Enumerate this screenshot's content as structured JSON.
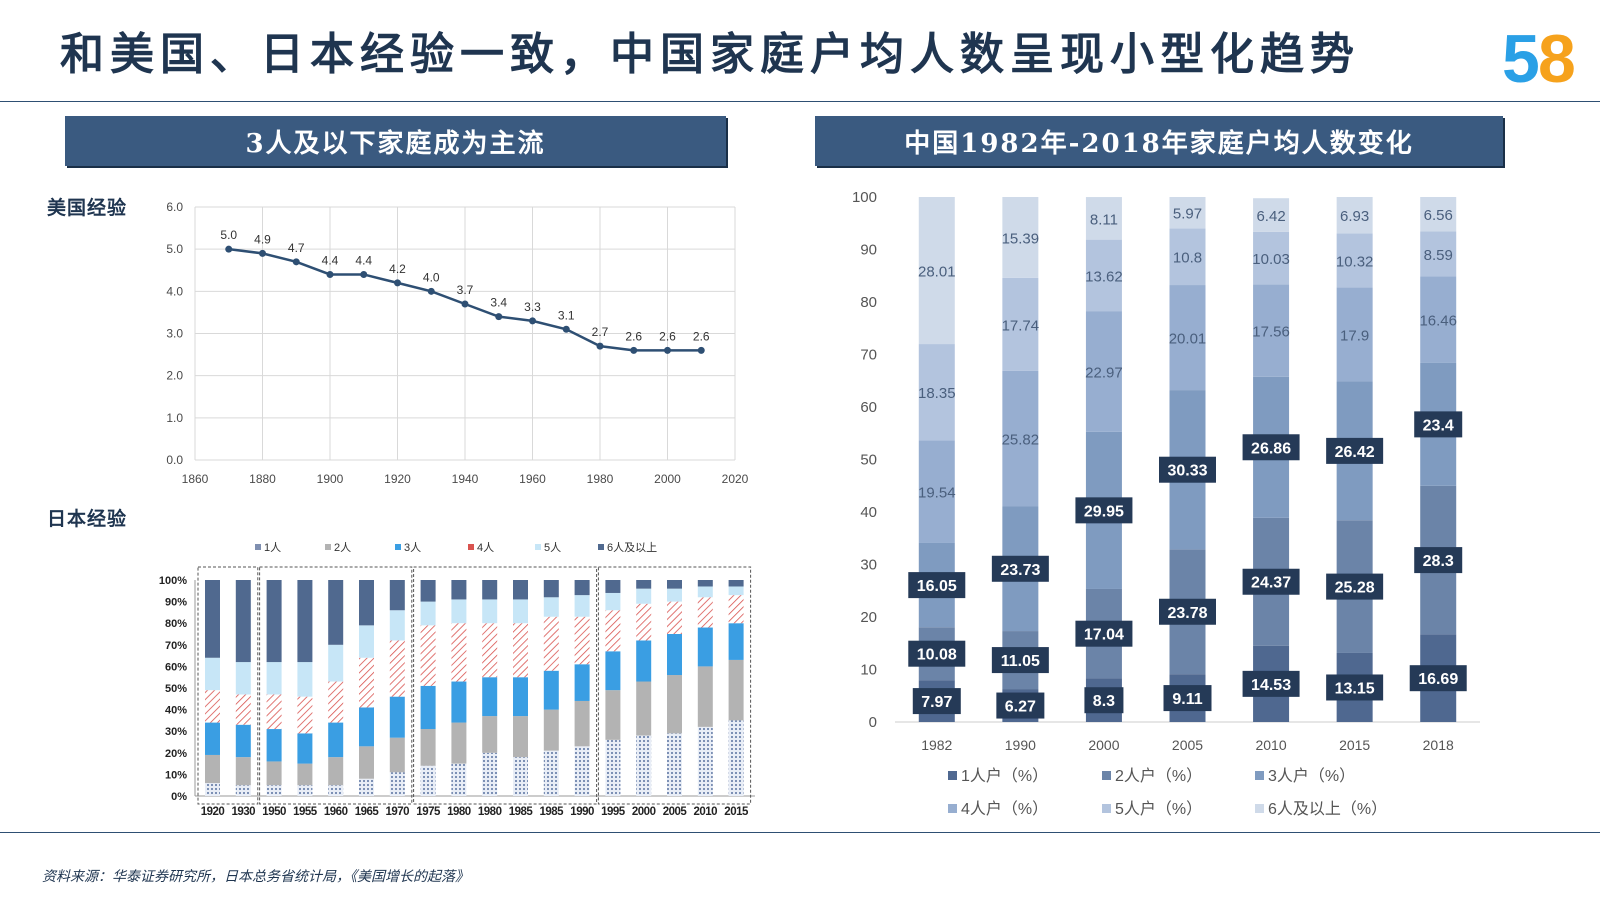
{
  "title": "和美国、日本经验一致，中国家庭户均人数呈现小型化趋势",
  "logo": {
    "text": "58",
    "colors": [
      "#2aa0e6",
      "#f6a21c",
      "#f07d2e"
    ]
  },
  "left_band": "3人及以下家庭成为主流",
  "right_band": "中国1982年-2018年家庭户均人数变化",
  "us_label": "美国经验",
  "jp_label": "日本经验",
  "source": "资料来源：华泰证券研究所，日本总务省统计局，《美国增长的起落》",
  "chart_data": [
    {
      "id": "us",
      "type": "line",
      "title": "美国经验",
      "x": [
        1870,
        1880,
        1890,
        1900,
        1910,
        1920,
        1930,
        1940,
        1950,
        1960,
        1970,
        1980,
        1990,
        2000,
        2010
      ],
      "values": [
        5.0,
        4.9,
        4.7,
        4.4,
        4.4,
        4.2,
        4.0,
        3.7,
        3.4,
        3.3,
        3.1,
        2.7,
        2.6,
        2.6,
        2.6
      ],
      "labels": [
        "5.0",
        "4.9",
        "4.7",
        "4.4",
        "4.4",
        "4.2",
        "4.0",
        "3.7",
        "3.4",
        "3.3",
        "3.1",
        "2.7",
        "2.6",
        "2.6",
        "2.6"
      ],
      "xlim": [
        1860,
        2020
      ],
      "ylim": [
        0,
        6
      ],
      "xticks": [
        "1860",
        "1880",
        "1900",
        "1920",
        "1940",
        "1960",
        "1980",
        "2000",
        "2020"
      ],
      "yticks": [
        "0.0",
        "1.0",
        "2.0",
        "3.0",
        "4.0",
        "5.0",
        "6.0"
      ],
      "color": "#2e4f73"
    },
    {
      "id": "jp",
      "type": "bar",
      "stacked": true,
      "title": "日本经验",
      "categories": [
        "1920",
        "1930",
        "1950",
        "1955",
        "1960",
        "1965",
        "1970",
        "1975",
        "1980",
        "1980",
        "1985",
        "1985",
        "1990",
        "1995",
        "2000",
        "2005",
        "2010",
        "2015"
      ],
      "legend": [
        "1人",
        "2人",
        "3人",
        "4人",
        "5人",
        "6人及以上"
      ],
      "series": [
        {
          "name": "1人",
          "values": [
            6,
            5,
            5,
            5,
            5,
            8,
            11,
            14,
            15,
            20,
            18,
            21,
            23,
            26,
            28,
            29,
            32,
            35
          ]
        },
        {
          "name": "2人",
          "values": [
            13,
            13,
            11,
            10,
            13,
            15,
            16,
            17,
            19,
            17,
            19,
            19,
            21,
            23,
            25,
            27,
            28,
            28
          ]
        },
        {
          "name": "3人",
          "values": [
            15,
            15,
            15,
            14,
            16,
            18,
            19,
            20,
            19,
            18,
            18,
            18,
            17,
            18,
            19,
            19,
            18,
            17
          ]
        },
        {
          "name": "4人",
          "values": [
            15,
            14,
            16,
            17,
            19,
            23,
            26,
            28,
            27,
            25,
            25,
            25,
            22,
            19,
            17,
            15,
            14,
            13
          ]
        },
        {
          "name": "5人",
          "values": [
            15,
            15,
            15,
            16,
            17,
            15,
            14,
            11,
            11,
            11,
            11,
            9,
            10,
            8,
            7,
            6,
            5,
            4
          ]
        },
        {
          "name": "6人及以上",
          "values": [
            36,
            38,
            38,
            38,
            30,
            21,
            14,
            10,
            9,
            9,
            9,
            8,
            7,
            6,
            4,
            4,
            3,
            3
          ]
        }
      ],
      "yticks": [
        "0%",
        "10%",
        "20%",
        "30%",
        "40%",
        "50%",
        "60%",
        "70%",
        "80%",
        "90%",
        "100%"
      ],
      "groups": [
        [
          0,
          1
        ],
        [
          2,
          6
        ],
        [
          7,
          12
        ],
        [
          13,
          17
        ]
      ]
    },
    {
      "id": "cn",
      "type": "bar",
      "stacked": true,
      "title": "中国1982年-2018年家庭户均人数变化",
      "categories": [
        "1982",
        "1990",
        "2000",
        "2005",
        "2010",
        "2015",
        "2018"
      ],
      "ylim": [
        0,
        100
      ],
      "yticks": [
        "0",
        "10",
        "20",
        "30",
        "40",
        "50",
        "60",
        "70",
        "80",
        "90",
        "100"
      ],
      "series": [
        {
          "name": "1人户（%）",
          "values": [
            7.97,
            6.27,
            8.3,
            9.11,
            14.53,
            13.15,
            16.69
          ],
          "labels": [
            "7.97",
            "6.27",
            "8.3",
            "9.11",
            "14.53",
            "13.15",
            "16.69"
          ],
          "color": "#4f6890"
        },
        {
          "name": "2人户（%）",
          "values": [
            10.08,
            11.05,
            17.04,
            23.78,
            24.37,
            25.28,
            28.3
          ],
          "labels": [
            "10.08",
            "11.05",
            "17.04",
            "23.78",
            "24.37",
            "25.28",
            "28.3"
          ],
          "color": "#6b84a8"
        },
        {
          "name": "3人户（%）",
          "values": [
            16.05,
            23.73,
            29.95,
            30.33,
            26.86,
            26.42,
            23.4
          ],
          "labels": [
            "16.05",
            "23.73",
            "29.95",
            "30.33",
            "26.86",
            "26.42",
            "23.4"
          ],
          "color": "#7f9bc0"
        },
        {
          "name": "4人户（%）",
          "values": [
            19.54,
            25.82,
            22.97,
            20.01,
            17.56,
            17.9,
            16.46
          ],
          "labels": [
            "19.54",
            "25.82",
            "22.97",
            "20.01",
            "17.56",
            "17.9",
            "16.46"
          ],
          "color": "#97aed0"
        },
        {
          "name": "5人户（%）",
          "values": [
            18.35,
            17.74,
            13.62,
            10.8,
            10.03,
            10.32,
            8.59
          ],
          "labels": [
            "18.35",
            "17.74",
            "13.62",
            "10.8",
            "10.03",
            "10.32",
            "8.59"
          ],
          "color": "#b3c4de"
        },
        {
          "name": "6人及以上（%）",
          "values": [
            28.01,
            15.39,
            8.11,
            5.97,
            6.42,
            6.93,
            6.56
          ],
          "labels": [
            "28.01",
            "15.39",
            "8.11",
            "5.97",
            "6.42",
            "6.93",
            "6.56"
          ],
          "color": "#cfdae9"
        }
      ]
    }
  ]
}
